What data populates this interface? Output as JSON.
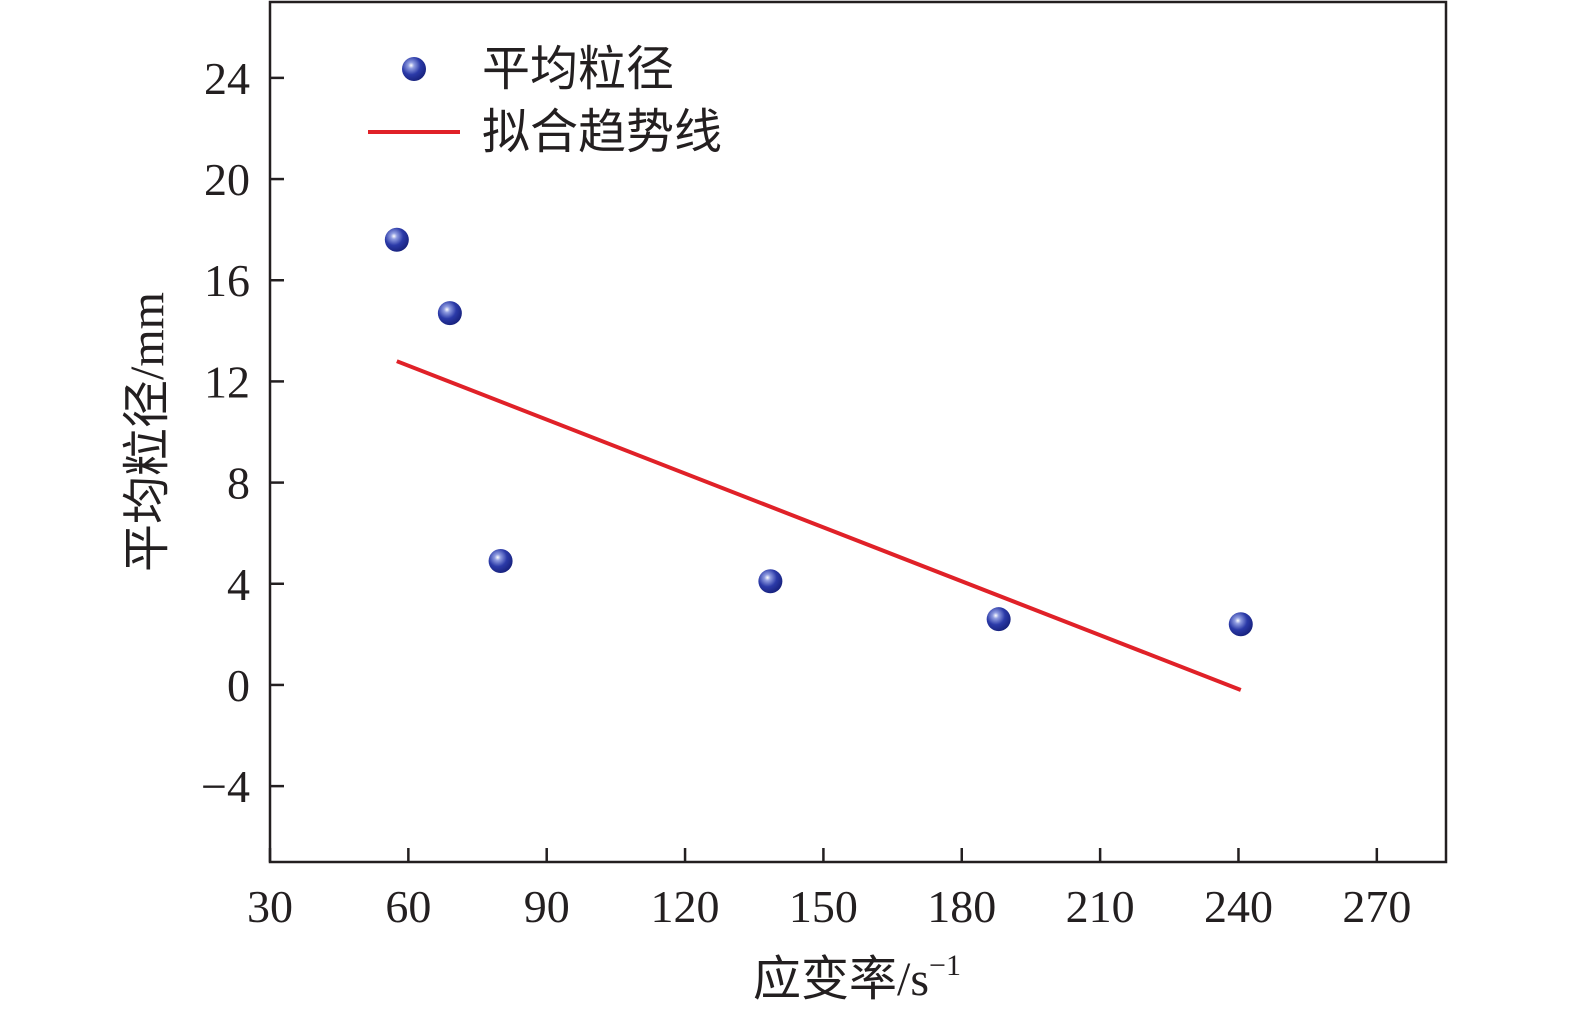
{
  "chart_data": {
    "type": "scatter",
    "xlabel": "应变率/s",
    "xlabel_sup": "−1",
    "ylabel": "平均粒径/mm",
    "xlim": [
      30,
      285
    ],
    "ylim": [
      -7,
      27
    ],
    "xticks": [
      30,
      60,
      90,
      120,
      150,
      180,
      210,
      240,
      270
    ],
    "yticks": [
      -4,
      0,
      4,
      8,
      12,
      16,
      20,
      24
    ],
    "ytick_labels": [
      "−4",
      "0",
      "4",
      "8",
      "12",
      "16",
      "20",
      "24"
    ],
    "grid": false,
    "legend_position": "top-left",
    "series": [
      {
        "name": "平均粒径",
        "kind": "scatter",
        "color": "#2b3aa8",
        "x": [
          57.5,
          69,
          80,
          138.5,
          188,
          240.5
        ],
        "y": [
          17.6,
          14.7,
          4.9,
          4.1,
          2.6,
          2.4
        ]
      },
      {
        "name": "拟合趋势线",
        "kind": "line",
        "color": "#e02128",
        "x": [
          57.5,
          240.5
        ],
        "y": [
          12.8,
          -0.2
        ]
      }
    ]
  }
}
